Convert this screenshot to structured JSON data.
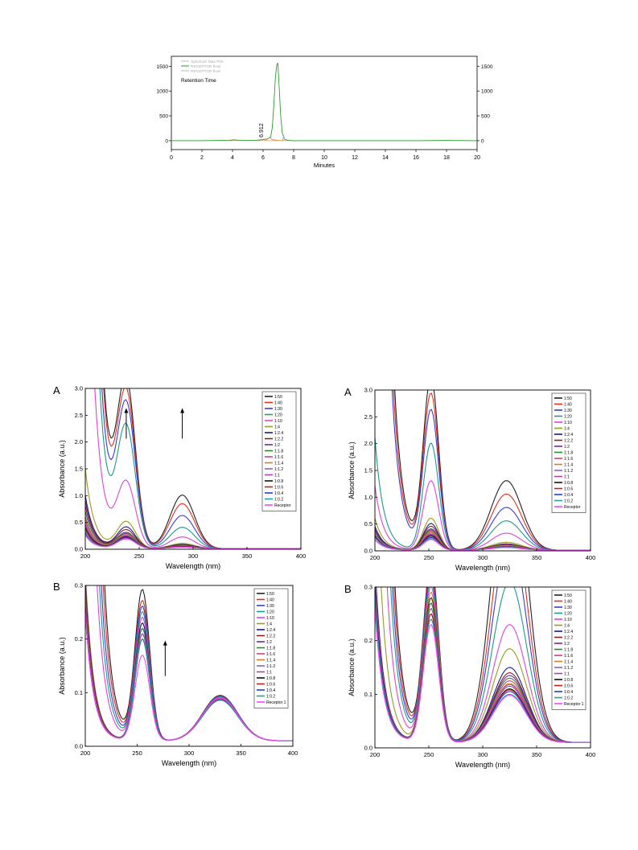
{
  "chart_data": [
    {
      "id": "hplc",
      "type": "line",
      "xlabel": "Minutes",
      "ylabel": "",
      "xlim": [
        0,
        20
      ],
      "ylim": [
        -180,
        1700
      ],
      "xticks": [
        0,
        2,
        4,
        6,
        8,
        10,
        12,
        14,
        16,
        18,
        20
      ],
      "yticks": [
        0,
        500,
        1000,
        1500
      ],
      "ytick_labels": [
        "0",
        "500",
        "1000",
        "1500"
      ],
      "right_axis": true,
      "legend": [
        "Spectrum Max Plot",
        "RECEPTOR final",
        "RECEPTOR final"
      ],
      "legend_colors": [
        "#bbbbbb",
        "#2e9a2e",
        "#bbbbbb"
      ],
      "legend_position": "top-left",
      "annotation_title": "Retention Time",
      "peak_label": "6.912",
      "peak_label_x": 6.0,
      "series": [
        {
          "name": "RECEPTOR final",
          "color": "#2e9a2e",
          "x": [
            0,
            2,
            3.8,
            4.1,
            4.4,
            5,
            5.6,
            6,
            6.3,
            6.5,
            6.6,
            6.7,
            6.8,
            6.9,
            6.97,
            7.05,
            7.15,
            7.25,
            7.4,
            7.6,
            8,
            9,
            10,
            12,
            14,
            16,
            18,
            20
          ],
          "y": [
            0,
            0,
            8,
            18,
            8,
            4,
            8,
            22,
            35,
            80,
            260,
            700,
            1250,
            1540,
            1560,
            1100,
            500,
            160,
            30,
            8,
            0,
            0,
            0,
            0,
            0,
            0,
            5,
            0
          ]
        },
        {
          "name": "",
          "color": "#9aaad8",
          "x": [
            7.25,
            7.3,
            7.35,
            7.4,
            7.45
          ],
          "y": [
            0,
            30,
            110,
            30,
            0
          ]
        },
        {
          "name": "",
          "color": "#d4a030",
          "x": [
            6.1,
            6.2,
            6.3,
            6.5,
            6.6,
            7.0,
            7.4
          ],
          "y": [
            0,
            10,
            45,
            55,
            20,
            5,
            0
          ]
        }
      ]
    },
    {
      "id": "left-A",
      "panel_letter": "A",
      "type": "line",
      "xlabel": "Wavelength (nm)",
      "ylabel": "Absorbance (a.u.)",
      "xlim": [
        200,
        400
      ],
      "ylim": [
        0,
        3.0
      ],
      "xticks": [
        200,
        250,
        300,
        350,
        400
      ],
      "yticks": [
        0,
        0.5,
        1.0,
        1.5,
        2.0,
        2.5,
        3.0
      ],
      "ytick_labels": [
        "0.0",
        "0.5",
        "1.0",
        "1.5",
        "2.0",
        "2.5",
        "3.0"
      ],
      "legend": [
        "1:50",
        "1:40",
        "1:30",
        "1:20",
        "1:10",
        "1:4",
        "1:2.4",
        "1:2.2",
        "1:2",
        "1:1.8",
        "1:1.6",
        "1:1.4",
        "1:1.2",
        "1:1",
        "1:0.8",
        "1:0.6",
        "1:0.4",
        "1:0.2",
        "Receptor"
      ],
      "legend_position": "top-right",
      "arrows": [
        [
          238,
          2.9
        ],
        [
          290,
          2.9
        ]
      ],
      "arrow_len": 0.38,
      "profile": {
        "w": [
          200,
          205,
          210,
          215,
          220,
          225,
          230,
          235,
          240,
          245,
          250,
          255,
          260,
          270,
          280,
          290,
          300,
          310,
          320,
          340,
          360,
          380,
          400
        ]
      },
      "series_params": {
        "names_from_legend": true,
        "a": [
          26,
          24,
          20,
          16,
          9,
          1.5,
          1.0,
          0.9,
          0.8,
          0.7,
          0.6,
          0.55,
          0.5,
          0.45,
          0.4,
          0.35,
          0.3,
          0.28,
          0.25
        ],
        "b": [
          3,
          2.8,
          2.6,
          2.2,
          1.2,
          0.5,
          0.4,
          0.35,
          0.3,
          0.28,
          0.26,
          0.25,
          0.24,
          0.23,
          0.22,
          0.21,
          0.2,
          0.19,
          0.18
        ],
        "c": [
          1.0,
          0.84,
          0.62,
          0.4,
          0.22,
          0.1,
          0.08,
          0.07,
          0.06,
          0.055,
          0.05,
          0.05,
          0.045,
          0.04,
          0.04,
          0.035,
          0.03,
          0.03,
          0.03
        ]
      },
      "band_centers": [
        238,
        290
      ],
      "band_widths": [
        12,
        16
      ]
    },
    {
      "id": "right-A",
      "panel_letter": "A",
      "type": "line",
      "xlabel": "Wavelength (nm)",
      "ylabel": "Absorbance (a.u.)",
      "xlim": [
        200,
        400
      ],
      "ylim": [
        0,
        3.0
      ],
      "xticks": [
        200,
        250,
        300,
        350,
        400
      ],
      "yticks": [
        0,
        0.5,
        1.0,
        1.5,
        2.0,
        2.5,
        3.0
      ],
      "ytick_labels": [
        "0.0",
        "0.5",
        "1.0",
        "1.5",
        "2.0",
        "2.5",
        "3.0"
      ],
      "legend": [
        "1:50",
        "1:40",
        "1:30",
        "1:20",
        "1:10",
        "1:4",
        "1:2.4",
        "1:2.2",
        "1:2",
        "1:1.8",
        "1:1.6",
        "1:1.4",
        "1:1.2",
        "1:1",
        "1:0.8",
        "1:0.6",
        "1:0.4",
        "1:0.2",
        "Receptor"
      ],
      "legend_position": "top-right",
      "arrows": [],
      "series_params": {
        "names_from_legend": true,
        "a": [
          30,
          26,
          22,
          2.1,
          1.2,
          0.6,
          0.45,
          0.4,
          0.38,
          0.35,
          0.33,
          0.32,
          0.3,
          0.28,
          0.27,
          0.26,
          0.25,
          0.24,
          0.2
        ],
        "b": [
          3.2,
          2.9,
          2.6,
          2.0,
          1.3,
          0.6,
          0.5,
          0.45,
          0.4,
          0.38,
          0.36,
          0.34,
          0.32,
          0.3,
          0.28,
          0.26,
          0.24,
          0.22,
          0.2
        ],
        "c": [
          1.3,
          1.05,
          0.8,
          0.55,
          0.32,
          0.15,
          0.12,
          0.11,
          0.1,
          0.1,
          0.09,
          0.09,
          0.08,
          0.08,
          0.07,
          0.07,
          0.06,
          0.06,
          0.05
        ]
      },
      "band_centers": [
        252,
        322
      ],
      "band_widths": [
        10,
        20
      ]
    },
    {
      "id": "left-B",
      "panel_letter": "B",
      "type": "line",
      "xlabel": "Wavelength (nm)",
      "ylabel": "Absorbance (a.u.)",
      "xlim": [
        200,
        400
      ],
      "ylim": [
        0,
        0.3
      ],
      "xticks": [
        200,
        250,
        300,
        350,
        400
      ],
      "yticks": [
        0,
        0.1,
        0.2,
        0.3
      ],
      "ytick_labels": [
        "0.0",
        "0.1",
        "0.2",
        "0.3"
      ],
      "legend": [
        "1:50",
        "1:40",
        "1:30",
        "1:20",
        "1:10",
        "1:4",
        "1:2.4",
        "1:2.2",
        "1:2",
        "1:1.8",
        "1:1.6",
        "1:1.4",
        "1:1.2",
        "1:1",
        "1:0.8",
        "1:0.6",
        "1:0.4",
        "1:0.2",
        "Receptor 1"
      ],
      "legend_position": "top-right",
      "arrows": [
        [
          277,
          0.23
        ]
      ],
      "arrow_len": 0.045,
      "series_params": {
        "names_from_legend": true,
        "a": [
          3,
          2.5,
          2.0,
          1.6,
          1.2,
          0.32,
          0.3,
          0.29,
          0.28,
          0.27,
          0.27,
          0.26,
          0.26,
          0.25,
          0.25,
          0.25,
          0.24,
          0.24,
          0.24
        ],
        "b": [
          0.28,
          0.26,
          0.25,
          0.24,
          0.23,
          0.22,
          0.22,
          0.21,
          0.21,
          0.21,
          0.2,
          0.2,
          0.2,
          0.2,
          0.19,
          0.19,
          0.19,
          0.19,
          0.16
        ],
        "c": [
          0.085,
          0.084,
          0.083,
          0.082,
          0.081,
          0.08,
          0.08,
          0.08,
          0.079,
          0.079,
          0.079,
          0.078,
          0.078,
          0.078,
          0.077,
          0.077,
          0.076,
          0.076,
          0.08
        ]
      },
      "band_centers": [
        255,
        330
      ],
      "band_widths": [
        10,
        24
      ]
    },
    {
      "id": "right-B",
      "panel_letter": "B",
      "type": "line",
      "xlabel": "Wavelength (nm)",
      "ylabel": "Absorbance (a.u.)",
      "xlim": [
        200,
        400
      ],
      "ylim": [
        0,
        0.3
      ],
      "xticks": [
        200,
        250,
        300,
        350,
        400
      ],
      "yticks": [
        0,
        0.1,
        0.2,
        0.3
      ],
      "ytick_labels": [
        "0.0",
        "0.1",
        "0.2",
        "0.3"
      ],
      "legend": [
        "1:50",
        "1:40",
        "1:30",
        "1:20",
        "1:10",
        "1:4",
        "1:2.4",
        "1:2.2",
        "1:2",
        "1:1.8",
        "1:1.6",
        "1:1.4",
        "1:1.2",
        "1:1",
        "1:0.8",
        "1:0.6",
        "1:0.4",
        "1:0.2",
        "Receptor 1"
      ],
      "legend_position": "top-right",
      "arrows": [],
      "series_params": {
        "names_from_legend": true,
        "a": [
          3,
          2.6,
          2.2,
          1.8,
          1.2,
          0.6,
          0.34,
          0.33,
          0.32,
          0.31,
          0.31,
          0.3,
          0.3,
          0.29,
          0.29,
          0.28,
          0.28,
          0.27,
          0.25
        ],
        "b": [
          0.33,
          0.32,
          0.31,
          0.3,
          0.29,
          0.28,
          0.27,
          0.27,
          0.26,
          0.26,
          0.25,
          0.25,
          0.25,
          0.24,
          0.24,
          0.24,
          0.23,
          0.23,
          0.22
        ],
        "c": [
          0.55,
          0.45,
          0.38,
          0.3,
          0.22,
          0.175,
          0.14,
          0.13,
          0.125,
          0.12,
          0.115,
          0.11,
          0.108,
          0.105,
          0.1,
          0.098,
          0.095,
          0.09,
          0.088
        ]
      },
      "band_centers": [
        252,
        325
      ],
      "band_widths": [
        10,
        22
      ]
    }
  ],
  "palette": [
    "#222222",
    "#e0301e",
    "#3a3ad6",
    "#1a9a8a",
    "#e040e0",
    "#9a9a20",
    "#1a1a8a",
    "#8a2020",
    "#6a2a9a",
    "#2a8a2a",
    "#d04080",
    "#d08020",
    "#8a60c0",
    "#b040b0",
    "#101010",
    "#c02020",
    "#2040d0",
    "#20a0a0",
    "#ff40ff"
  ]
}
